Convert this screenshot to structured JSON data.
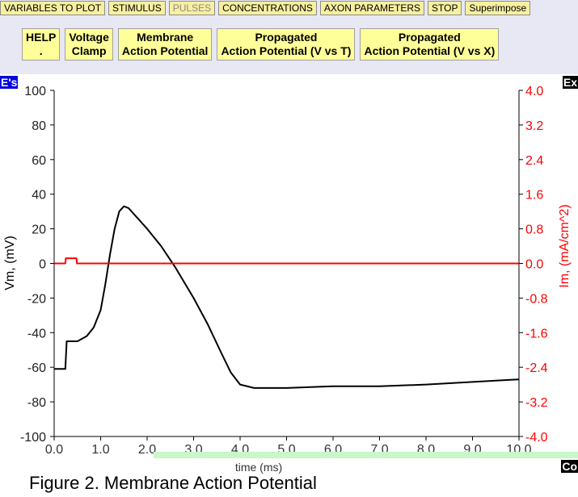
{
  "menu": {
    "items": [
      {
        "label": "VARIABLES TO PLOT",
        "disabled": false
      },
      {
        "label": "STIMULUS",
        "disabled": false
      },
      {
        "label": "PULSES",
        "disabled": true
      },
      {
        "label": "CONCENTRATIONS",
        "disabled": false
      },
      {
        "label": "AXON PARAMETERS",
        "disabled": false
      },
      {
        "label": "STOP",
        "disabled": false
      },
      {
        "label": "Superimpose",
        "disabled": false
      }
    ]
  },
  "toolbar": {
    "buttons": [
      {
        "line1": "HELP",
        "line2": "."
      },
      {
        "line1": "Voltage",
        "line2": "Clamp"
      },
      {
        "line1": "Membrane",
        "line2": "Action Potential"
      },
      {
        "line1": "Propagated",
        "line2": "Action Potential (V vs T)"
      },
      {
        "line1": "Propagated",
        "line2": "Action Potential (V vs X)"
      }
    ]
  },
  "tags": {
    "left_top": "E's",
    "right_top": "Ex",
    "right_bottom": "Co"
  },
  "caption": "Figure 2. Membrane Action Potential",
  "colors": {
    "vm": "#000000",
    "im": "#ff0000",
    "accent_yellow": "#ffff99"
  },
  "chart_data": {
    "type": "line",
    "xlabel": "time (ms)",
    "ylabel": "Vm, (mV)",
    "y2label": "Im, (mA/cm^2)",
    "xlim": [
      0,
      10
    ],
    "ylim": [
      -100,
      100
    ],
    "y2lim": [
      -4,
      4
    ],
    "xticks": [
      "0.0",
      "1.0",
      "2.0",
      "3.0",
      "4.0",
      "5.0",
      "6.0",
      "7.0",
      "8.0",
      "9.0",
      "10.0"
    ],
    "yticks": [
      "100",
      "80",
      "60",
      "40",
      "20",
      "0",
      "-20",
      "-40",
      "-60",
      "-80",
      "-100"
    ],
    "y2ticks": [
      "4.0",
      "3.2",
      "2.4",
      "1.6",
      "0.8",
      "0.0",
      "-0.8",
      "-1.6",
      "-2.4",
      "-3.2",
      "-4.0"
    ],
    "grid": false,
    "series": [
      {
        "axis": "left",
        "x": [
          0,
          0.24,
          0.27,
          0.5,
          0.7,
          0.85,
          1.0,
          1.1,
          1.2,
          1.3,
          1.4,
          1.5,
          1.6,
          1.8,
          2.0,
          2.3,
          2.6,
          3.0,
          3.3,
          3.6,
          3.8,
          4.0,
          4.3,
          5.0,
          6.0,
          7.0,
          8.0,
          9.0,
          10.0
        ],
        "y": [
          -61,
          -61,
          -45,
          -45,
          -42,
          -37,
          -27,
          -12,
          5,
          20,
          30,
          33,
          32,
          26,
          20,
          10,
          -2,
          -20,
          -35,
          -52,
          -63,
          -70,
          -72,
          -72,
          -71,
          -71,
          -70,
          -68.5,
          -67
        ]
      },
      {
        "axis": "right",
        "x": [
          0,
          0.24,
          0.25,
          0.48,
          0.49,
          10.0
        ],
        "y": [
          0.0,
          0.0,
          0.12,
          0.12,
          0.0,
          0.0
        ]
      }
    ]
  }
}
